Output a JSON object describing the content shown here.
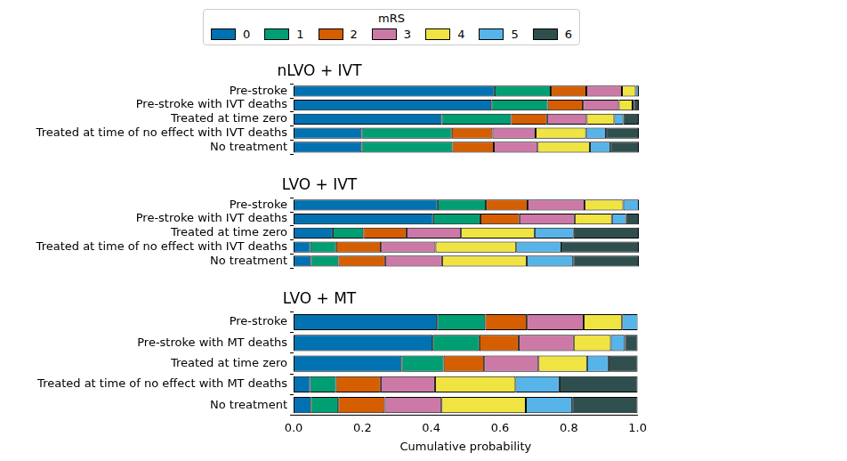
{
  "chart_data": [
    {
      "type": "bar",
      "orientation": "horizontal",
      "stacked": true,
      "title": "nLVO + IVT",
      "legend": "top",
      "legend_title": "mRS",
      "tick_labels": "y",
      "grid": false,
      "xlim": [
        0,
        1
      ],
      "categories": [
        "Pre-stroke",
        "Pre-stroke with IVT deaths",
        "Treated at time zero",
        "Treated at time of no effect with IVT deaths",
        "No treatment"
      ],
      "series": [
        {
          "name": "0",
          "color": "#0072B2",
          "values": [
            0.582,
            0.573,
            0.429,
            0.197,
            0.197
          ]
        },
        {
          "name": "1",
          "color": "#009E73",
          "values": [
            0.163,
            0.163,
            0.201,
            0.261,
            0.263
          ]
        },
        {
          "name": "2",
          "color": "#D55E00",
          "values": [
            0.103,
            0.102,
            0.104,
            0.118,
            0.12
          ]
        },
        {
          "name": "3",
          "color": "#CC79A7",
          "values": [
            0.103,
            0.104,
            0.115,
            0.125,
            0.127
          ]
        },
        {
          "name": "4",
          "color": "#F0E442",
          "values": [
            0.04,
            0.04,
            0.08,
            0.146,
            0.151
          ]
        },
        {
          "name": "5",
          "color": "#56B4E9",
          "values": [
            0.009,
            0.004,
            0.026,
            0.058,
            0.06
          ]
        },
        {
          "name": "6",
          "color": "#2F4F4F",
          "values": [
            0.0,
            0.014,
            0.045,
            0.095,
            0.082
          ]
        }
      ]
    },
    {
      "type": "bar",
      "orientation": "horizontal",
      "stacked": true,
      "title": "LVO + IVT",
      "tick_labels": "y",
      "grid": false,
      "xlim": [
        0,
        1
      ],
      "categories": [
        "Pre-stroke",
        "Pre-stroke with IVT deaths",
        "Treated at time zero",
        "Treated at time of no effect with IVT deaths",
        "No treatment"
      ],
      "series": [
        {
          "name": "0",
          "color": "#0072B2",
          "values": [
            0.417,
            0.404,
            0.113,
            0.048,
            0.05
          ]
        },
        {
          "name": "1",
          "color": "#009E73",
          "values": [
            0.14,
            0.137,
            0.089,
            0.075,
            0.08
          ]
        },
        {
          "name": "2",
          "color": "#D55E00",
          "values": [
            0.121,
            0.113,
            0.125,
            0.13,
            0.135
          ]
        },
        {
          "name": "3",
          "color": "#CC79A7",
          "values": [
            0.165,
            0.16,
            0.158,
            0.158,
            0.165
          ]
        },
        {
          "name": "4",
          "color": "#F0E442",
          "values": [
            0.112,
            0.108,
            0.213,
            0.234,
            0.245
          ]
        },
        {
          "name": "5",
          "color": "#56B4E9",
          "values": [
            0.045,
            0.041,
            0.113,
            0.131,
            0.135
          ]
        },
        {
          "name": "6",
          "color": "#2F4F4F",
          "values": [
            0.0,
            0.037,
            0.189,
            0.224,
            0.19
          ]
        }
      ]
    },
    {
      "type": "bar",
      "orientation": "horizontal",
      "stacked": true,
      "title": "LVO + MT",
      "grid": false,
      "xlabel": "Cumulative probability",
      "xlim": [
        0,
        1
      ],
      "xticks": [
        {
          "value": 0,
          "label": "0.0"
        },
        {
          "value": 0.2,
          "label": "0.2"
        },
        {
          "value": 0.4,
          "label": "0.4"
        },
        {
          "value": 0.6,
          "label": "0.6"
        },
        {
          "value": 0.8,
          "label": "0.8"
        },
        {
          "value": 1,
          "label": "1.0"
        }
      ],
      "categories": [
        "Pre-stroke",
        "Pre-stroke with MT deaths",
        "Treated at time zero",
        "Treated at time of no effect with MT deaths",
        "No treatment"
      ],
      "series": [
        {
          "name": "0",
          "color": "#0072B2",
          "values": [
            0.417,
            0.404,
            0.314,
            0.048,
            0.05
          ]
        },
        {
          "name": "1",
          "color": "#009E73",
          "values": [
            0.14,
            0.136,
            0.122,
            0.075,
            0.08
          ]
        },
        {
          "name": "2",
          "color": "#D55E00",
          "values": [
            0.121,
            0.114,
            0.118,
            0.13,
            0.135
          ]
        },
        {
          "name": "3",
          "color": "#CC79A7",
          "values": [
            0.165,
            0.16,
            0.158,
            0.158,
            0.165
          ]
        },
        {
          "name": "4",
          "color": "#F0E442",
          "values": [
            0.112,
            0.108,
            0.141,
            0.234,
            0.245
          ]
        },
        {
          "name": "5",
          "color": "#56B4E9",
          "values": [
            0.045,
            0.041,
            0.062,
            0.128,
            0.135
          ]
        },
        {
          "name": "6",
          "color": "#2F4F4F",
          "values": [
            0.0,
            0.037,
            0.085,
            0.227,
            0.19
          ]
        }
      ]
    }
  ]
}
